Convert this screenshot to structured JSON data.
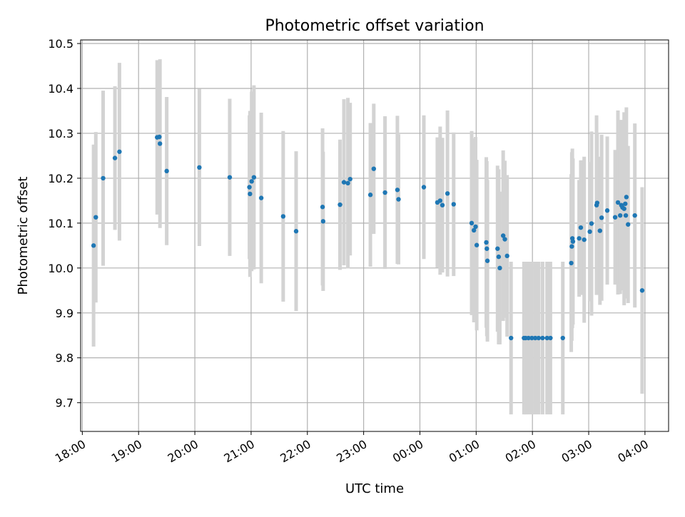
{
  "chart_data": {
    "type": "scatter",
    "title": "Photometric offset variation",
    "xlabel": "UTC time",
    "ylabel": "Photometric offset",
    "x_tick_labels": [
      "18:00",
      "19:00",
      "20:00",
      "21:00",
      "22:00",
      "23:00",
      "00:00",
      "01:00",
      "02:00",
      "03:00",
      "04:00"
    ],
    "x_tick_hours": [
      18,
      19,
      20,
      21,
      22,
      23,
      24,
      25,
      26,
      27,
      28
    ],
    "xlim_hours": [
      17.97,
      28.42
    ],
    "y_ticks": [
      9.7,
      9.8,
      9.9,
      10.0,
      10.1,
      10.2,
      10.3,
      10.4,
      10.5
    ],
    "y_tick_labels": [
      "9.7",
      "9.8",
      "9.9",
      "10.0",
      "10.1",
      "10.2",
      "10.3",
      "10.4",
      "10.5"
    ],
    "ylim": [
      9.636,
      10.508
    ],
    "grid": true,
    "legend": "none",
    "colors": {
      "point": "#1f77b4",
      "errorbar": "#d3d3d3",
      "grid": "#b0b0b0"
    },
    "x_hours": [
      18.2,
      18.24,
      18.37,
      18.58,
      18.66,
      19.33,
      19.37,
      19.38,
      19.5,
      20.08,
      20.62,
      20.97,
      20.98,
      21.01,
      21.05,
      21.18,
      21.57,
      21.8,
      22.27,
      22.28,
      22.58,
      22.65,
      22.72,
      22.76,
      23.12,
      23.18,
      23.38,
      23.6,
      23.62,
      24.07,
      24.31,
      24.36,
      24.4,
      24.49,
      24.6,
      24.92,
      24.96,
      24.99,
      25.01,
      25.18,
      25.19,
      25.2,
      25.38,
      25.4,
      25.42,
      25.48,
      25.51,
      25.55,
      25.62,
      25.85,
      25.88,
      25.93,
      25.99,
      26.05,
      26.11,
      26.18,
      26.26,
      26.32,
      26.54,
      26.69,
      26.7,
      26.71,
      26.72,
      26.83,
      26.86,
      26.92,
      27.02,
      27.05,
      27.14,
      27.15,
      27.2,
      27.23,
      27.33,
      27.47,
      27.52,
      27.56,
      27.58,
      27.6,
      27.63,
      27.65,
      27.66,
      27.67,
      27.7,
      27.82,
      27.95
    ],
    "y_values": [
      10.05,
      10.113,
      10.2,
      10.245,
      10.259,
      10.291,
      10.292,
      10.277,
      10.216,
      10.224,
      10.202,
      10.18,
      10.165,
      10.193,
      10.202,
      10.156,
      10.115,
      10.082,
      10.136,
      10.104,
      10.141,
      10.191,
      10.189,
      10.198,
      10.163,
      10.221,
      10.168,
      10.174,
      10.153,
      10.18,
      10.146,
      10.15,
      10.14,
      10.166,
      10.142,
      10.1,
      10.084,
      10.092,
      10.051,
      10.057,
      10.043,
      10.016,
      10.043,
      10.025,
      10.0,
      10.072,
      10.064,
      10.027,
      9.844,
      9.844,
      9.844,
      9.844,
      9.844,
      9.844,
      9.844,
      9.844,
      9.844,
      9.844,
      9.844,
      10.011,
      10.048,
      10.066,
      10.059,
      10.066,
      10.09,
      10.063,
      10.081,
      10.099,
      10.14,
      10.145,
      10.083,
      10.112,
      10.128,
      10.113,
      10.146,
      10.117,
      10.14,
      10.135,
      10.132,
      10.143,
      10.117,
      10.158,
      10.097,
      10.117,
      9.95
    ],
    "y_err": [
      0.225,
      0.19,
      0.195,
      0.16,
      0.198,
      0.172,
      0.17,
      0.188,
      0.165,
      0.175,
      0.175,
      0.16,
      0.185,
      0.2,
      0.205,
      0.19,
      0.19,
      0.178,
      0.175,
      0.155,
      0.145,
      0.185,
      0.19,
      0.17,
      0.16,
      0.145,
      0.17,
      0.165,
      0.145,
      0.16,
      0.145,
      0.165,
      0.15,
      0.185,
      0.16,
      0.205,
      0.205,
      0.2,
      0.19,
      0.19,
      0.195,
      0.18,
      0.185,
      0.195,
      0.17,
      0.19,
      0.175,
      0.18,
      0.17,
      0.17,
      0.17,
      0.17,
      0.17,
      0.17,
      0.17,
      0.17,
      0.17,
      0.17,
      0.17,
      0.198,
      0.21,
      0.2,
      0.185,
      0.13,
      0.15,
      0.185,
      0.155,
      0.205,
      0.2,
      0.155,
      0.165,
      0.185,
      0.165,
      0.15,
      0.205,
      0.175,
      0.19,
      0.175,
      0.215,
      0.17,
      0.185,
      0.2,
      0.175,
      0.205,
      0.23
    ]
  }
}
